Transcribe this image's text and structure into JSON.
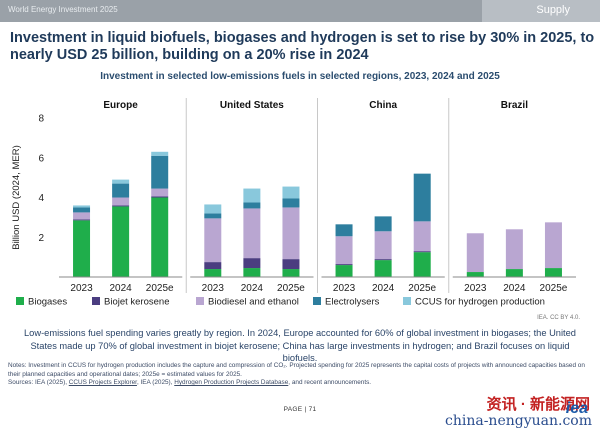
{
  "header": {
    "report": "World Energy Investment 2025",
    "section": "Supply"
  },
  "title": "Investment in liquid biofuels, biogases and hydrogen is set to rise by 30% in 2025, to nearly USD 25 billion, building on a 20% rise in 2024",
  "chart_data": {
    "type": "bar",
    "stacked": true,
    "title": "Investment in selected low-emissions fuels in selected regions, 2023, 2024 and 2025",
    "ylabel": "Billion USD (2024, MER)",
    "ylim": [
      0,
      8
    ],
    "yticks": [
      2,
      4,
      6,
      8
    ],
    "grid": false,
    "legend_position": "bottom",
    "source_note": "IEA. CC BY 4.0.",
    "categories": [
      "2023",
      "2024",
      "2025e"
    ],
    "panels": [
      {
        "name": "Europe",
        "series": [
          {
            "name": "Biogases",
            "values": [
              2.85,
              3.55,
              4.0
            ]
          },
          {
            "name": "Biojet kerosene",
            "values": [
              0.05,
              0.05,
              0.05
            ]
          },
          {
            "name": "Biodiesel and ethanol",
            "values": [
              0.35,
              0.4,
              0.4
            ]
          },
          {
            "name": "Electrolysers",
            "values": [
              0.25,
              0.7,
              1.65
            ]
          },
          {
            "name": "CCUS for hydrogen production",
            "values": [
              0.1,
              0.2,
              0.2
            ]
          }
        ]
      },
      {
        "name": "United States",
        "series": [
          {
            "name": "Biogases",
            "values": [
              0.4,
              0.45,
              0.4
            ]
          },
          {
            "name": "Biojet kerosene",
            "values": [
              0.35,
              0.5,
              0.5
            ]
          },
          {
            "name": "Biodiesel and ethanol",
            "values": [
              2.2,
              2.5,
              2.6
            ]
          },
          {
            "name": "Electrolysers",
            "values": [
              0.25,
              0.3,
              0.45
            ]
          },
          {
            "name": "CCUS for hydrogen production",
            "values": [
              0.45,
              0.7,
              0.6
            ]
          }
        ]
      },
      {
        "name": "China",
        "series": [
          {
            "name": "Biogases",
            "values": [
              0.6,
              0.85,
              1.25
            ]
          },
          {
            "name": "Biojet kerosene",
            "values": [
              0.05,
              0.05,
              0.05
            ]
          },
          {
            "name": "Biodiesel and ethanol",
            "values": [
              1.4,
              1.4,
              1.5
            ]
          },
          {
            "name": "Electrolysers",
            "values": [
              0.6,
              0.75,
              2.4
            ]
          },
          {
            "name": "CCUS for hydrogen production",
            "values": [
              0,
              0,
              0
            ]
          }
        ]
      },
      {
        "name": "Brazil",
        "series": [
          {
            "name": "Biogases",
            "values": [
              0.25,
              0.4,
              0.45
            ]
          },
          {
            "name": "Biojet kerosene",
            "values": [
              0,
              0,
              0
            ]
          },
          {
            "name": "Biodiesel and ethanol",
            "values": [
              1.95,
              2.0,
              2.3
            ]
          },
          {
            "name": "Electrolysers",
            "values": [
              0,
              0,
              0
            ]
          },
          {
            "name": "CCUS for hydrogen production",
            "values": [
              0,
              0,
              0
            ]
          }
        ]
      }
    ],
    "legend": [
      {
        "name": "Biogases",
        "color": "#1fae4b"
      },
      {
        "name": "Biojet kerosene",
        "color": "#4b3d80"
      },
      {
        "name": "Biodiesel and ethanol",
        "color": "#b9a6d1"
      },
      {
        "name": "Electrolysers",
        "color": "#2d7e9e"
      },
      {
        "name": "CCUS for hydrogen production",
        "color": "#89c8dc"
      }
    ]
  },
  "caption": "Low-emissions fuel spending varies greatly by region. In 2024, Europe accounted for 60% of global investment in biogases; the United States made up 70% of global investment in biojet kerosene; China has large investments in hydrogen; and Brazil focuses on liquid biofuels.",
  "notes": {
    "line1": "Notes: Investment in CCUS for hydrogen production includes the capture and compression of CO₂. Projected spending for 2025 represents the capital costs of projects with announced capacities based on their planned capacities and operational dates; 2025e = estimated values for 2025.",
    "sources_prefix": "Sources: IEA (2025), ",
    "link1": "CCUS Projects Explorer",
    "mid": ", IEA (2025), ",
    "link2": "Hydrogen Production Projects Database",
    "suffix": ", and recent announcements."
  },
  "page": "PAGE | 71",
  "watermark": {
    "line1": "资讯 · 新能源网",
    "line2": "china-nengyuan.com",
    "logo": "iea"
  }
}
